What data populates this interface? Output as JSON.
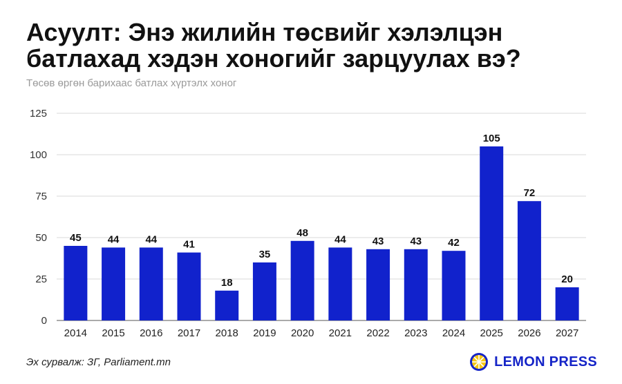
{
  "title": "Асуулт: Энэ жилийн төсвийг хэлэлцэн батлахад хэдэн хоногийг зарцуулах вэ?",
  "subtitle": "Төсөв өргөн барихаас батлах хүртэлх хоног",
  "source": "Эх сурвалж: ЗГ, Parliament.mn",
  "brand": {
    "name": "LEMON PRESS",
    "icon": "lemon-logo-icon"
  },
  "colors": {
    "bar": "#1122cc",
    "grid": "#d9d9d9",
    "brand": "#1524c7",
    "logo_yellow": "#f7c814"
  },
  "chart_data": {
    "type": "bar",
    "categories": [
      "2014",
      "2015",
      "2016",
      "2017",
      "2018",
      "2019",
      "2020",
      "2021",
      "2022",
      "2023",
      "2024",
      "2025",
      "2026",
      "2027"
    ],
    "values": [
      45,
      44,
      44,
      41,
      18,
      35,
      48,
      44,
      43,
      43,
      42,
      105,
      72,
      20
    ],
    "ylim": [
      0,
      125
    ],
    "yticks": [
      0,
      25,
      50,
      75,
      100,
      125
    ],
    "grid": true,
    "data_labels": true
  }
}
